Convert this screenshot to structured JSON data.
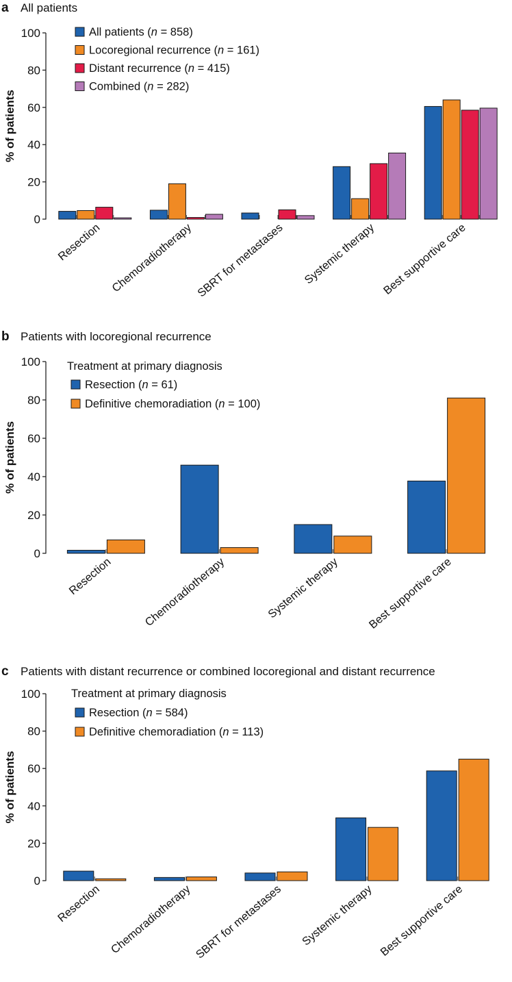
{
  "chart_data": [
    {
      "type": "bar",
      "panel_label": "a",
      "title": "All patients",
      "ylabel": "% of patients",
      "xlabel": "",
      "ylim": [
        0,
        100
      ],
      "yticks": [
        "0",
        "20",
        "40",
        "60",
        "80",
        "100"
      ],
      "legend_title": "",
      "legend_position": "top-left",
      "categories": [
        "Resection",
        "Chemoradiotherapy",
        "SBRT for metastases",
        "Systemic therapy",
        "Best supportive care"
      ],
      "series": [
        {
          "name": "All patients",
          "n": "858",
          "color": "#1f63ae",
          "values": [
            4.2,
            4.8,
            3.3,
            28.2,
            60.5
          ]
        },
        {
          "name": "Locoregional recurrence",
          "n": "161",
          "color": "#f08a24",
          "values": [
            4.6,
            19.0,
            0,
            11.0,
            64.0
          ]
        },
        {
          "name": "Distant recurrence",
          "n": "415",
          "color": "#e31c48",
          "values": [
            6.4,
            0.9,
            5.0,
            29.8,
            58.5
          ]
        },
        {
          "name": "Combined",
          "n": "282",
          "color": "#b57bb8",
          "values": [
            0.7,
            2.6,
            1.9,
            35.5,
            59.6
          ]
        }
      ]
    },
    {
      "type": "bar",
      "panel_label": "b",
      "title": "Patients with locoregional recurrence",
      "ylabel": "% of patients",
      "xlabel": "",
      "ylim": [
        0,
        100
      ],
      "yticks": [
        "0",
        "20",
        "40",
        "60",
        "80",
        "100"
      ],
      "legend_title": "Treatment at primary diagnosis",
      "legend_position": "top-left",
      "categories": [
        "Resection",
        "Chemoradiotherapy",
        "Systemic therapy",
        "Best supportive care"
      ],
      "series": [
        {
          "name": "Resection",
          "n": "61",
          "color": "#1f63ae",
          "values": [
            1.6,
            46.0,
            15.0,
            37.7
          ]
        },
        {
          "name": "Definitive chemoradiation",
          "n": "100",
          "color": "#f08a24",
          "values": [
            7.0,
            3.0,
            9.0,
            81.0
          ]
        }
      ]
    },
    {
      "type": "bar",
      "panel_label": "c",
      "title": "Patients with distant recurrence or combined locoregional and distant recurrence",
      "ylabel": "% of patients",
      "xlabel": "",
      "ylim": [
        0,
        100
      ],
      "yticks": [
        "0",
        "20",
        "40",
        "60",
        "80",
        "100"
      ],
      "legend_title": "Treatment at primary diagnosis",
      "legend_position": "top-left",
      "categories": [
        "Resection",
        "Chemoradiotherapy",
        "SBRT for metastases",
        "Systemic therapy",
        "Best supportive care"
      ],
      "series": [
        {
          "name": "Resection",
          "n": "584",
          "color": "#1f63ae",
          "values": [
            5.1,
            1.7,
            4.1,
            33.6,
            58.7
          ]
        },
        {
          "name": "Definitive chemoradiation",
          "n": "113",
          "color": "#f08a24",
          "values": [
            1.0,
            2.0,
            4.7,
            28.5,
            65.0
          ]
        }
      ]
    }
  ]
}
